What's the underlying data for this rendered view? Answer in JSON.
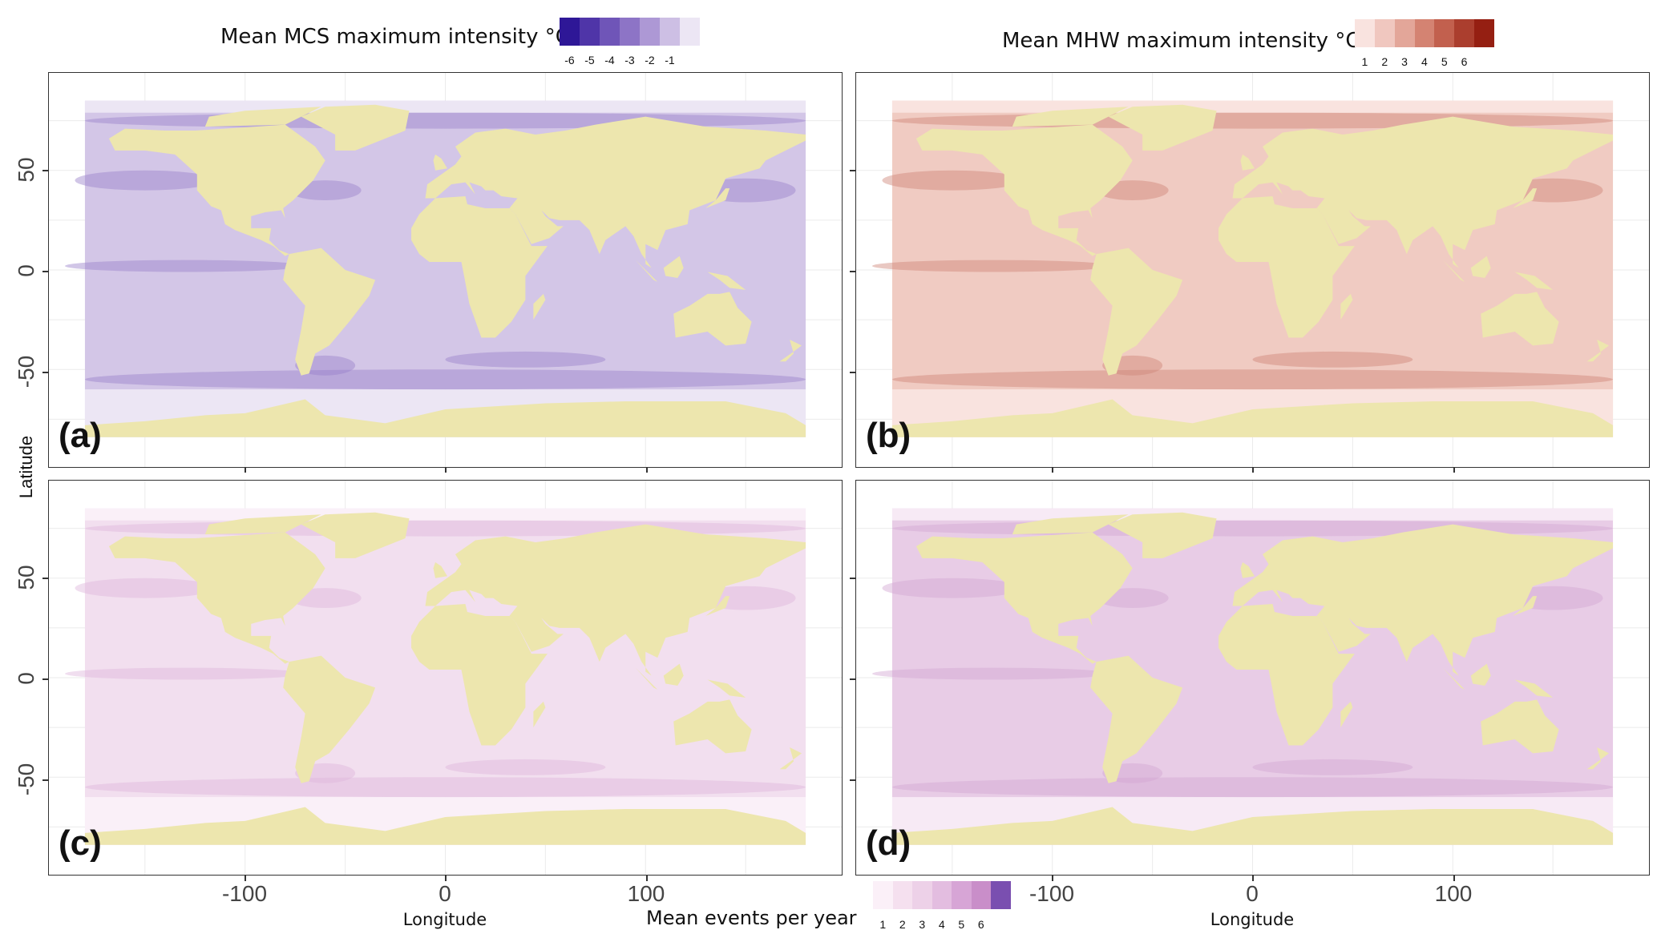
{
  "legend_top_left": {
    "title": "Mean MCS maximum intensity °C",
    "labels": [
      "-6",
      "-5",
      "-4",
      "-3",
      "-2",
      "-1"
    ],
    "colors": [
      "#2e1797",
      "#4f35a8",
      "#6f55b8",
      "#8d74c6",
      "#ad98d5",
      "#cdbfe4",
      "#ece6f4"
    ]
  },
  "legend_top_right": {
    "title": "Mean MHW maximum intensity °C",
    "labels": [
      "1",
      "2",
      "3",
      "4",
      "5",
      "6"
    ],
    "colors": [
      "#f9e3df",
      "#f0c7bf",
      "#e3a699",
      "#d48372",
      "#c2604e",
      "#ab3e2e",
      "#951f12"
    ]
  },
  "legend_bottom": {
    "title": "Mean events per year",
    "labels": [
      "1",
      "2",
      "3",
      "4",
      "5",
      "6"
    ],
    "colors": [
      "#fbf0f8",
      "#f5e0ef",
      "#edd1e8",
      "#e3bde0",
      "#d7a5d6",
      "#c98ec9",
      "#7a4fb0"
    ]
  },
  "panels": [
    {
      "tag": "(a)",
      "ocean": "#d3c6e7",
      "dark": "#9880c9",
      "light": "#ece6f4"
    },
    {
      "tag": "(b)",
      "ocean": "#f0cbc2",
      "dark": "#cf8677",
      "light": "#f9e3df"
    },
    {
      "tag": "(c)",
      "ocean": "#f2dfef",
      "dark": "#ddb6dc",
      "light": "#faf0f8"
    },
    {
      "tag": "(d)",
      "ocean": "#e8cce6",
      "dark": "#d2a6d3",
      "light": "#f7eaf5"
    }
  ],
  "land_color": "#ede6ae",
  "axes": {
    "ylabel": "Latitude",
    "xlabel": "Longitude",
    "yticks": [
      "50",
      "0",
      "-50"
    ],
    "xticks": [
      "-100",
      "0",
      "100"
    ]
  }
}
